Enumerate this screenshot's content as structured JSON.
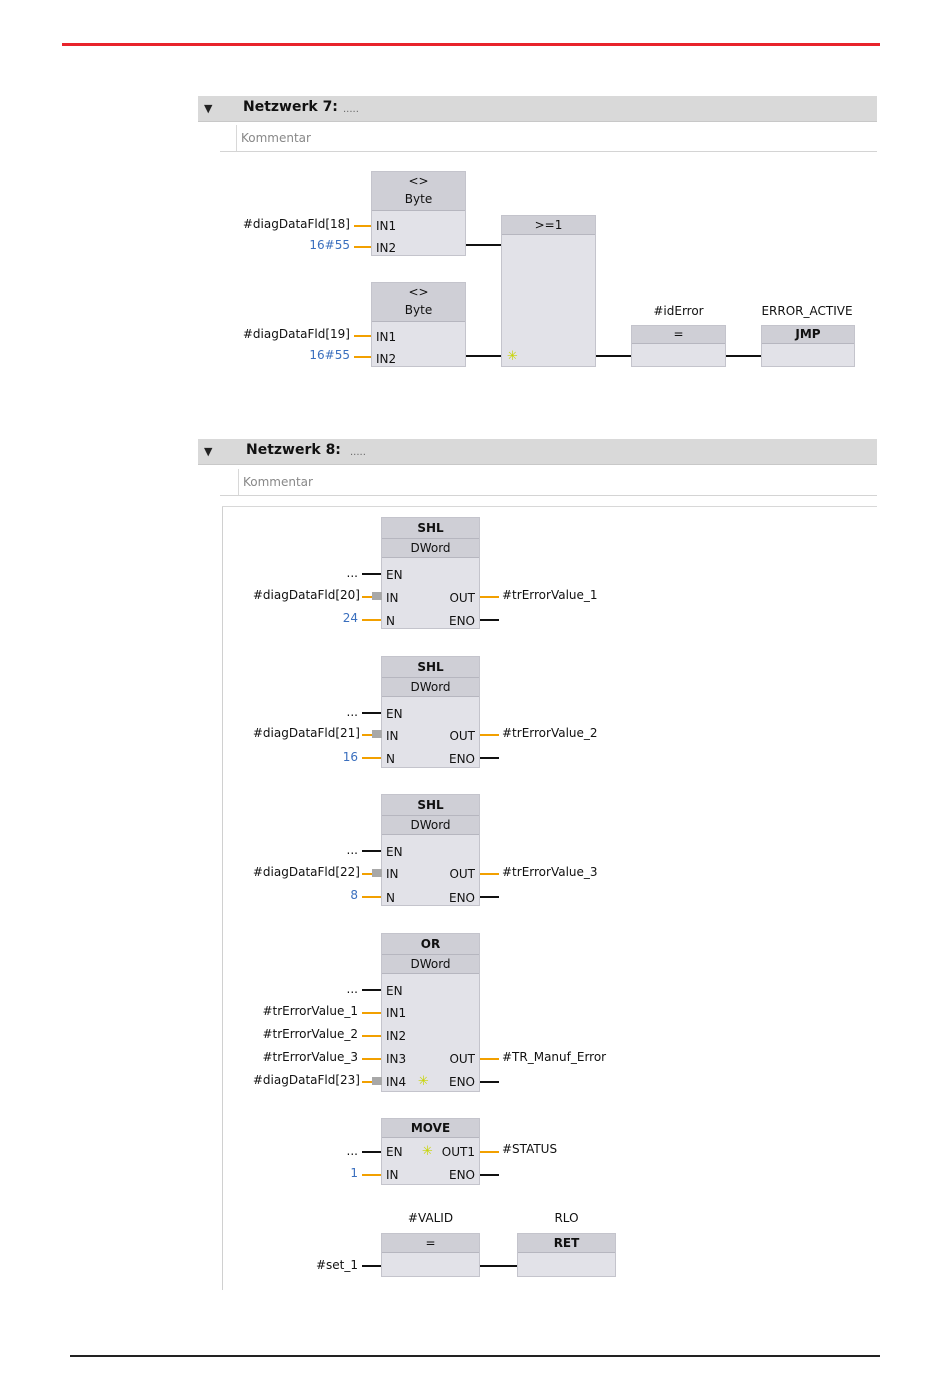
{
  "network7": {
    "title": "Netzwerk 7:",
    "dots": ".....",
    "comment": "Kommentar",
    "cmp1": {
      "op": "<>",
      "type": "Byte",
      "in1": "IN1",
      "in2": "IN2",
      "in1_val": "#diagDataFld[18]",
      "in2_val": "16#55"
    },
    "cmp2": {
      "op": "<>",
      "type": "Byte",
      "in1": "IN1",
      "in2": "IN2",
      "in1_val": "#diagDataFld[19]",
      "in2_val": "16#55"
    },
    "or_box": {
      "op": ">=1"
    },
    "assign": {
      "var": "#idError",
      "op": "="
    },
    "jmp": {
      "label": "ERROR_ACTIVE",
      "op": "JMP"
    }
  },
  "network8": {
    "title": "Netzwerk 8:",
    "dots": ".....",
    "comment": "Kommentar",
    "shl1": {
      "op": "SHL",
      "type": "DWord",
      "en": "EN",
      "in": "IN",
      "n": "N",
      "out": "OUT",
      "eno": "ENO",
      "en_val": "...",
      "in_val": "#diagDataFld[20]",
      "n_val": "24",
      "out_val": "#trErrorValue_1"
    },
    "shl2": {
      "op": "SHL",
      "type": "DWord",
      "en": "EN",
      "in": "IN",
      "n": "N",
      "out": "OUT",
      "eno": "ENO",
      "en_val": "...",
      "in_val": "#diagDataFld[21]",
      "n_val": "16",
      "out_val": "#trErrorValue_2"
    },
    "shl3": {
      "op": "SHL",
      "type": "DWord",
      "en": "EN",
      "in": "IN",
      "n": "N",
      "out": "OUT",
      "eno": "ENO",
      "en_val": "...",
      "in_val": "#diagDataFld[22]",
      "n_val": "8",
      "out_val": "#trErrorValue_3"
    },
    "or_word": {
      "op": "OR",
      "type": "DWord",
      "en": "EN",
      "in1": "IN1",
      "in2": "IN2",
      "in3": "IN3",
      "in4": "IN4",
      "out": "OUT",
      "eno": "ENO",
      "en_val": "...",
      "in1_val": "#trErrorValue_1",
      "in2_val": "#trErrorValue_2",
      "in3_val": "#trErrorValue_3",
      "in4_val": "#diagDataFld[23]",
      "out_val": "#TR_Manuf_Error"
    },
    "move": {
      "op": "MOVE",
      "en": "EN",
      "in": "IN",
      "out1": "OUT1",
      "eno": "ENO",
      "en_val": "...",
      "in_val": "1",
      "out_val": "#STATUS"
    },
    "assign": {
      "var": "#VALID",
      "op": "=",
      "in_val": "#set_1"
    },
    "ret": {
      "label": "RLO",
      "op": "RET"
    }
  }
}
